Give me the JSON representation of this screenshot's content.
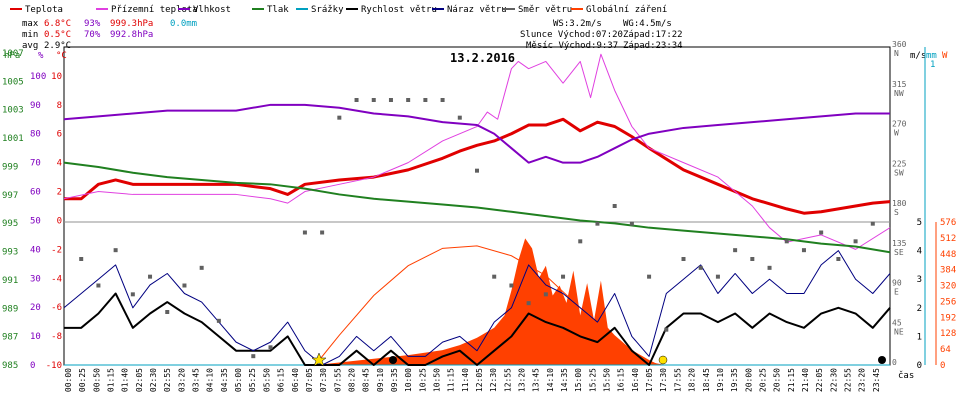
{
  "chart_data": {
    "type": "line",
    "title": "13.2.2016",
    "xlabel": "čas",
    "legend": [
      {
        "label": "Teplota",
        "color": "#e00000"
      },
      {
        "label": "Přízemní teplota",
        "color": "#e040e0"
      },
      {
        "label": "Vlhkost",
        "color": "#8000c0"
      },
      {
        "label": "Tlak",
        "color": "#208020"
      },
      {
        "label": "Srážky",
        "color": "#00a0c0"
      },
      {
        "label": "Rychlost větru",
        "color": "#000000"
      },
      {
        "label": "Náraz větru",
        "color": "#000080"
      },
      {
        "label": "Směr větru",
        "color": "#606060"
      },
      {
        "label": "Globální záření",
        "color": "#ff4000"
      }
    ],
    "stats": {
      "max": {
        "label": "max",
        "temp": "6.8°C",
        "hum": "93%",
        "press": "999.3hPa",
        "rain": "0.0mm"
      },
      "min": {
        "label": "min",
        "temp": "0.5°C",
        "hum": "70%",
        "press": "992.8hPa"
      },
      "avg": {
        "label": "avg",
        "temp": "2.9°C"
      }
    },
    "info": {
      "ws": "WS:3.2m/s",
      "wg": "WG:4.5m/s",
      "sun_rise": "Slunce Východ:07:20",
      "sun_set": "Západ:17:22",
      "moon_rise": "Měsíc Východ:9:37",
      "moon_set": "Západ:23:34"
    },
    "axes": {
      "hpa": {
        "title": "hPa",
        "ticks": [
          "1007",
          "1005",
          "1003",
          "1001",
          "999",
          "997",
          "995",
          "993",
          "991",
          "989",
          "987",
          "985"
        ],
        "range": [
          985,
          1007
        ]
      },
      "hum": {
        "title": "%",
        "ticks": [
          "100",
          "90",
          "80",
          "70",
          "60",
          "50",
          "40",
          "30",
          "20",
          "10",
          "0"
        ],
        "range": [
          0,
          110
        ]
      },
      "temp": {
        "title": "°C",
        "ticks": [
          "10",
          "8",
          "6",
          "4",
          "2",
          "0",
          "-2",
          "-4",
          "-6",
          "-8",
          "-10"
        ],
        "range": [
          -10,
          12
        ]
      },
      "dir": {
        "ticks": [
          {
            "deg": "360",
            "name": "N"
          },
          {
            "deg": "315",
            "name": "NW"
          },
          {
            "deg": "270",
            "name": "W"
          },
          {
            "deg": "225",
            "name": "SW"
          },
          {
            "deg": "180",
            "name": "S"
          },
          {
            "deg": "135",
            "name": "SE"
          },
          {
            "deg": "90",
            "name": "E"
          },
          {
            "deg": "45",
            "name": "NE"
          },
          {
            "deg": "0",
            "name": ""
          }
        ]
      },
      "ms": {
        "title": "m/s",
        "ticks": [
          "5",
          "4",
          "3",
          "2",
          "1",
          "0"
        ],
        "range": [
          0,
          5
        ]
      },
      "mm": {
        "title": "mm",
        "ticks": [
          "1"
        ]
      },
      "w": {
        "title": "W",
        "ticks": [
          "576",
          "512",
          "448",
          "384",
          "320",
          "256",
          "192",
          "128",
          "64",
          "0"
        ],
        "range": [
          0,
          576
        ]
      }
    },
    "x_ticks": [
      "00:00",
      "00:25",
      "00:50",
      "01:15",
      "01:40",
      "02:05",
      "02:30",
      "02:55",
      "03:20",
      "03:45",
      "04:10",
      "04:35",
      "05:00",
      "05:25",
      "05:50",
      "06:15",
      "06:40",
      "07:05",
      "07:30",
      "07:55",
      "08:20",
      "08:45",
      "09:10",
      "09:35",
      "10:00",
      "10:25",
      "10:50",
      "11:15",
      "11:40",
      "12:05",
      "12:30",
      "12:55",
      "13:20",
      "13:45",
      "14:10",
      "14:35",
      "15:00",
      "15:25",
      "15:50",
      "16:15",
      "16:40",
      "17:05",
      "17:30",
      "17:55",
      "18:20",
      "18:45",
      "19:10",
      "19:35",
      "20:00",
      "20:25",
      "20:50",
      "21:15",
      "21:40",
      "22:05",
      "22:30",
      "22:55",
      "23:20",
      "23:45"
    ],
    "series": [
      {
        "name": "Teplota",
        "unit": "°C",
        "hours": [
          0,
          0.5,
          1,
          1.5,
          2,
          3,
          4,
          5,
          6,
          6.5,
          7,
          8,
          9,
          10,
          11,
          11.5,
          12,
          12.5,
          13,
          13.5,
          14,
          14.5,
          15,
          15.5,
          16,
          16.5,
          17,
          18,
          19,
          20,
          21,
          21.5,
          22,
          22.5,
          23,
          23.5,
          24
        ],
        "values": [
          1.5,
          1.5,
          2.5,
          2.8,
          2.5,
          2.5,
          2.5,
          2.5,
          2.2,
          1.8,
          2.5,
          2.8,
          3.0,
          3.5,
          4.3,
          4.8,
          5.2,
          5.5,
          6.0,
          6.6,
          6.6,
          7.0,
          6.2,
          6.8,
          6.5,
          5.8,
          5.0,
          3.5,
          2.5,
          1.5,
          0.8,
          0.5,
          0.6,
          0.8,
          1.0,
          1.2,
          1.3
        ]
      },
      {
        "name": "Přízemní teplota",
        "unit": "°C",
        "hours": [
          0,
          1,
          2,
          3,
          4,
          5,
          6,
          6.5,
          7,
          8,
          9,
          10,
          11,
          12,
          12.3,
          12.6,
          13,
          13.2,
          13.5,
          14,
          14.5,
          15,
          15.3,
          15.6,
          16,
          16.5,
          17,
          18,
          19,
          20,
          20.5,
          21,
          22,
          23,
          24
        ],
        "values": [
          1.5,
          2.0,
          1.8,
          1.8,
          1.8,
          1.8,
          1.5,
          1.2,
          2.0,
          2.5,
          3.0,
          4.0,
          5.5,
          6.5,
          7.5,
          7.0,
          10.5,
          11.0,
          10.5,
          11.0,
          9.5,
          11.0,
          8.5,
          11.5,
          9.0,
          6.5,
          5.0,
          4.0,
          3.0,
          1.0,
          -0.5,
          -1.5,
          -1.0,
          -2.0,
          -0.5
        ]
      },
      {
        "name": "Vlhkost",
        "unit": "%",
        "hours": [
          0,
          1,
          2,
          3,
          4,
          5,
          6,
          7,
          8,
          9,
          10,
          11,
          12,
          12.5,
          13,
          13.5,
          14,
          14.5,
          15,
          15.5,
          16,
          16.5,
          17,
          18,
          19,
          20,
          21,
          22,
          23,
          24
        ],
        "values": [
          85,
          86,
          87,
          88,
          88,
          88,
          90,
          90,
          89,
          87,
          86,
          84,
          83,
          80,
          75,
          70,
          72,
          70,
          70,
          72,
          75,
          78,
          80,
          82,
          83,
          84,
          85,
          86,
          87,
          87
        ]
      },
      {
        "name": "Tlak",
        "unit": "hPa",
        "hours": [
          0,
          1,
          2,
          3,
          4,
          5,
          6,
          7,
          8,
          9,
          10,
          11,
          12,
          13,
          14,
          15,
          16,
          17,
          18,
          19,
          20,
          21,
          22,
          23,
          24
        ],
        "values": [
          999.0,
          998.7,
          998.3,
          998.0,
          997.8,
          997.6,
          997.5,
          997.2,
          996.8,
          996.5,
          996.3,
          996.1,
          995.9,
          995.6,
          995.3,
          995.0,
          994.8,
          994.5,
          994.3,
          994.1,
          993.9,
          993.7,
          993.4,
          993.2,
          992.8
        ]
      },
      {
        "name": "Srážky",
        "unit": "mm",
        "hours": [
          0,
          24
        ],
        "values": [
          0.0,
          0.0
        ]
      },
      {
        "name": "Rychlost větru",
        "unit": "m/s",
        "hours": [
          0,
          0.5,
          1,
          1.5,
          2,
          2.5,
          3,
          3.5,
          4,
          4.5,
          5,
          5.5,
          6,
          6.5,
          7,
          7.5,
          8,
          8.5,
          9,
          9.5,
          10,
          10.5,
          11,
          11.5,
          12,
          12.5,
          13,
          13.5,
          14,
          14.5,
          15,
          15.5,
          16,
          16.5,
          17,
          17.5,
          18,
          18.5,
          19,
          19.5,
          20,
          20.5,
          21,
          21.5,
          22,
          22.5,
          23,
          23.5,
          24
        ],
        "values": [
          1.3,
          1.3,
          1.8,
          2.5,
          1.3,
          1.8,
          2.2,
          1.8,
          1.5,
          1.0,
          0.5,
          0.5,
          0.5,
          1.0,
          0.0,
          0.0,
          0.0,
          0.5,
          0.0,
          0.5,
          0.0,
          0.0,
          0.3,
          0.5,
          0.0,
          0.5,
          1.0,
          1.8,
          1.5,
          1.3,
          1.0,
          0.8,
          1.3,
          0.5,
          0.0,
          1.3,
          1.8,
          1.8,
          1.5,
          1.8,
          1.3,
          1.8,
          1.5,
          1.3,
          1.8,
          2.0,
          1.8,
          1.3,
          2.0
        ]
      },
      {
        "name": "Náraz větru",
        "unit": "m/s",
        "hours": [
          0,
          0.5,
          1,
          1.5,
          2,
          2.5,
          3,
          3.5,
          4,
          4.5,
          5,
          5.5,
          6,
          6.5,
          7,
          7.5,
          8,
          8.5,
          9,
          9.5,
          10,
          10.5,
          11,
          11.5,
          12,
          12.5,
          13,
          13.5,
          14,
          14.5,
          15,
          15.5,
          16,
          16.5,
          17,
          17.5,
          18,
          18.5,
          19,
          19.5,
          20,
          20.5,
          21,
          21.5,
          22,
          22.5,
          23,
          23.5,
          24
        ],
        "values": [
          2.0,
          2.5,
          3.0,
          3.5,
          2.0,
          2.8,
          3.2,
          2.5,
          2.2,
          1.5,
          0.8,
          0.5,
          0.8,
          1.5,
          0.5,
          0.0,
          0.3,
          1.0,
          0.5,
          1.0,
          0.3,
          0.3,
          0.8,
          1.0,
          0.5,
          1.5,
          2.0,
          3.5,
          2.8,
          2.5,
          2.0,
          1.5,
          2.5,
          1.0,
          0.3,
          2.5,
          3.0,
          3.5,
          2.5,
          3.2,
          2.5,
          3.0,
          2.5,
          2.5,
          3.5,
          4.0,
          3.0,
          2.5,
          3.2
        ]
      },
      {
        "name": "Směr větru",
        "unit": "°",
        "hours": [
          0.5,
          1,
          1.5,
          2,
          2.5,
          3,
          3.5,
          4,
          4.5,
          5.5,
          6,
          7,
          7.5,
          8,
          8.5,
          9,
          9.5,
          10,
          10.5,
          11,
          11.5,
          12,
          12.5,
          13,
          13.5,
          14,
          14.5,
          15,
          15.5,
          16,
          16.5,
          17,
          17.5,
          18,
          18.5,
          19,
          19.5,
          20,
          20.5,
          21,
          21.5,
          22,
          22.5,
          23,
          23.5
        ],
        "values": [
          120,
          90,
          130,
          80,
          100,
          60,
          90,
          110,
          50,
          10,
          20,
          150,
          150,
          280,
          300,
          300,
          300,
          300,
          300,
          300,
          280,
          220,
          100,
          90,
          70,
          80,
          100,
          140,
          160,
          180,
          160,
          100,
          40,
          120,
          110,
          100,
          130,
          120,
          110,
          140,
          130,
          150,
          120,
          140,
          160
        ]
      },
      {
        "name": "Globální záření",
        "unit": "W",
        "hours": [
          7.3,
          8,
          9,
          10,
          11,
          11.5,
          12,
          12.5,
          12.8,
          13,
          13.2,
          13.4,
          13.6,
          13.8,
          14,
          14.2,
          14.4,
          14.6,
          14.8,
          15,
          15.2,
          15.4,
          15.6,
          15.8,
          16,
          16.5,
          17,
          17.3
        ],
        "values": [
          0,
          10,
          25,
          40,
          60,
          80,
          110,
          150,
          200,
          300,
          420,
          510,
          470,
          350,
          400,
          280,
          320,
          250,
          380,
          200,
          330,
          180,
          340,
          150,
          120,
          60,
          20,
          0
        ]
      }
    ],
    "theoretical_radiation": {
      "hours": [
        7.3,
        8,
        9,
        10,
        11,
        12,
        13,
        14,
        15,
        16,
        17,
        17.4
      ],
      "values": [
        0,
        120,
        280,
        400,
        470,
        480,
        440,
        360,
        230,
        100,
        10,
        0
      ]
    },
    "ylim_temp": [
      -10,
      12
    ],
    "grid": true
  }
}
